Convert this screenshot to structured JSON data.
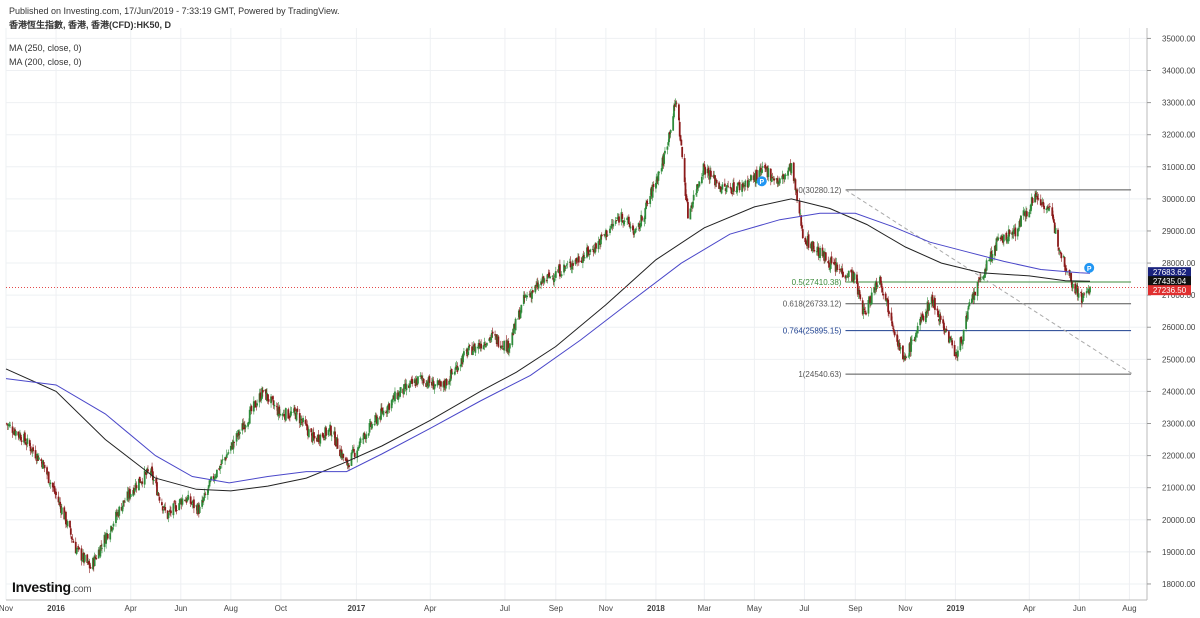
{
  "header": {
    "published": "Published on Investing.com, 17/Jun/2019 - 7:33:19 GMT, Powered by TradingView.",
    "symbol": "香港恆生指數, 香港, 香港(CFD):HK50, D",
    "ma1": "MA (250, close, 0)",
    "ma2": "MA (200, close, 0)"
  },
  "logo": {
    "main": "Investing",
    "suffix": ".com"
  },
  "colors": {
    "up": "#2e8b3a",
    "down": "#8b1a1a",
    "ma250": "#222222",
    "ma200": "#4a47c9",
    "current": "#e03030",
    "fib": "#555555",
    "fib_green": "#3c8c3c",
    "fib_blue": "#1c3f8f"
  },
  "chart_data": {
    "type": "candlestick",
    "title": "香港恆生指數, 香港, 香港(CFD):HK50, D",
    "y_axis": {
      "min": 17500,
      "max": 35200,
      "ticks": [
        18000,
        19000,
        20000,
        21000,
        22000,
        23000,
        24000,
        25000,
        26000,
        27000,
        28000,
        29000,
        30000,
        31000,
        32000,
        33000,
        34000,
        35000
      ],
      "tick_labels": [
        "18000.00",
        "19000.00",
        "20000.00",
        "21000.00",
        "22000.00",
        "23000.00",
        "24000.00",
        "25000.00",
        "26000.00",
        "27000.00",
        "28000.00",
        "29000.00",
        "30000.00",
        "31000.00",
        "32000.00",
        "33000.00",
        "34000.00",
        "35000.00"
      ]
    },
    "x_axis": {
      "start": "2015-11-01",
      "end": "2019-08-20",
      "ticks": [
        {
          "date": "2015-11-01",
          "label": "Nov"
        },
        {
          "date": "2016-01-01",
          "label": "2016"
        },
        {
          "date": "2016-04-01",
          "label": "Apr"
        },
        {
          "date": "2016-06-01",
          "label": "Jun"
        },
        {
          "date": "2016-08-01",
          "label": "Aug"
        },
        {
          "date": "2016-10-01",
          "label": "Oct"
        },
        {
          "date": "2017-01-01",
          "label": "2017"
        },
        {
          "date": "2017-04-01",
          "label": "Apr"
        },
        {
          "date": "2017-07-01",
          "label": "Jul"
        },
        {
          "date": "2017-09-01",
          "label": "Sep"
        },
        {
          "date": "2017-11-01",
          "label": "Nov"
        },
        {
          "date": "2018-01-01",
          "label": "2018"
        },
        {
          "date": "2018-03-01",
          "label": "Mar"
        },
        {
          "date": "2018-05-01",
          "label": "May"
        },
        {
          "date": "2018-07-01",
          "label": "Jul"
        },
        {
          "date": "2018-09-01",
          "label": "Sep"
        },
        {
          "date": "2018-11-01",
          "label": "Nov"
        },
        {
          "date": "2019-01-01",
          "label": "2019"
        },
        {
          "date": "2019-04-01",
          "label": "Apr"
        },
        {
          "date": "2019-06-01",
          "label": "Jun"
        },
        {
          "date": "2019-08-01",
          "label": "Aug"
        }
      ]
    },
    "price_path": [
      [
        "2015-11-01",
        23000
      ],
      [
        "2015-11-20",
        22600
      ],
      [
        "2015-12-15",
        21800
      ],
      [
        "2016-01-10",
        20200
      ],
      [
        "2016-01-25",
        19100
      ],
      [
        "2016-02-12",
        18500
      ],
      [
        "2016-02-25",
        19200
      ],
      [
        "2016-03-20",
        20400
      ],
      [
        "2016-04-10",
        21200
      ],
      [
        "2016-04-25",
        21500
      ],
      [
        "2016-05-15",
        20100
      ],
      [
        "2016-06-05",
        20700
      ],
      [
        "2016-06-24",
        20300
      ],
      [
        "2016-07-10",
        21300
      ],
      [
        "2016-07-31",
        22200
      ],
      [
        "2016-08-20",
        23100
      ],
      [
        "2016-09-09",
        24000
      ],
      [
        "2016-09-30",
        23300
      ],
      [
        "2016-10-20",
        23300
      ],
      [
        "2016-11-10",
        22500
      ],
      [
        "2016-12-01",
        22800
      ],
      [
        "2016-12-20",
        21700
      ],
      [
        "2017-01-15",
        22800
      ],
      [
        "2017-02-20",
        23900
      ],
      [
        "2017-03-20",
        24400
      ],
      [
        "2017-04-15",
        24100
      ],
      [
        "2017-05-15",
        25200
      ],
      [
        "2017-06-15",
        25700
      ],
      [
        "2017-07-05",
        25400
      ],
      [
        "2017-07-25",
        26900
      ],
      [
        "2017-08-20",
        27500
      ],
      [
        "2017-09-15",
        27900
      ],
      [
        "2017-10-15",
        28400
      ],
      [
        "2017-11-20",
        29500
      ],
      [
        "2017-12-08",
        28900
      ],
      [
        "2018-01-10",
        31200
      ],
      [
        "2018-01-26",
        33100
      ],
      [
        "2018-02-09",
        29500
      ],
      [
        "2018-02-28",
        31000
      ],
      [
        "2018-03-23",
        30300
      ],
      [
        "2018-04-15",
        30400
      ],
      [
        "2018-05-15",
        30900
      ],
      [
        "2018-05-31",
        30500
      ],
      [
        "2018-06-15",
        31000
      ],
      [
        "2018-06-30",
        28800
      ],
      [
        "2018-07-20",
        28300
      ],
      [
        "2018-08-10",
        27800
      ],
      [
        "2018-08-30",
        27600
      ],
      [
        "2018-09-12",
        26400
      ],
      [
        "2018-09-30",
        27600
      ],
      [
        "2018-10-15",
        26300
      ],
      [
        "2018-10-30",
        24900
      ],
      [
        "2018-11-15",
        25900
      ],
      [
        "2018-12-03",
        26900
      ],
      [
        "2018-12-20",
        25900
      ],
      [
        "2019-01-03",
        25100
      ],
      [
        "2019-01-20",
        26800
      ],
      [
        "2019-02-20",
        28600
      ],
      [
        "2019-03-15",
        29000
      ],
      [
        "2019-04-08",
        30100
      ],
      [
        "2019-04-25",
        29700
      ],
      [
        "2019-05-10",
        28300
      ],
      [
        "2019-05-25",
        27300
      ],
      [
        "2019-06-05",
        26900
      ],
      [
        "2019-06-14",
        27236
      ]
    ],
    "series": [
      {
        "name": "MA (250, close, 0)",
        "color": "#222222",
        "points": [
          [
            "2015-11-01",
            24700
          ],
          [
            "2016-01-01",
            24000
          ],
          [
            "2016-03-01",
            22500
          ],
          [
            "2016-05-01",
            21300
          ],
          [
            "2016-06-20",
            20950
          ],
          [
            "2016-08-01",
            20900
          ],
          [
            "2016-09-15",
            21050
          ],
          [
            "2016-11-01",
            21300
          ],
          [
            "2016-12-15",
            21750
          ],
          [
            "2017-02-01",
            22300
          ],
          [
            "2017-04-01",
            23100
          ],
          [
            "2017-06-01",
            24000
          ],
          [
            "2017-07-15",
            24600
          ],
          [
            "2017-09-01",
            25400
          ],
          [
            "2017-11-01",
            26700
          ],
          [
            "2018-01-01",
            28100
          ],
          [
            "2018-03-01",
            29100
          ],
          [
            "2018-05-01",
            29750
          ],
          [
            "2018-06-15",
            30000
          ],
          [
            "2018-08-01",
            29700
          ],
          [
            "2018-09-15",
            29200
          ],
          [
            "2018-11-01",
            28500
          ],
          [
            "2018-12-15",
            28000
          ],
          [
            "2019-02-01",
            27700
          ],
          [
            "2019-04-01",
            27600
          ],
          [
            "2019-05-15",
            27450
          ],
          [
            "2019-06-14",
            27435
          ]
        ]
      },
      {
        "name": "MA (200, close, 0)",
        "color": "#4a47c9",
        "points": [
          [
            "2015-11-01",
            24400
          ],
          [
            "2016-01-01",
            24200
          ],
          [
            "2016-03-01",
            23300
          ],
          [
            "2016-05-01",
            22000
          ],
          [
            "2016-06-15",
            21350
          ],
          [
            "2016-07-30",
            21150
          ],
          [
            "2016-09-15",
            21350
          ],
          [
            "2016-11-01",
            21500
          ],
          [
            "2016-12-20",
            21500
          ],
          [
            "2017-02-01",
            22050
          ],
          [
            "2017-04-01",
            22850
          ],
          [
            "2017-06-01",
            23700
          ],
          [
            "2017-08-01",
            24500
          ],
          [
            "2017-10-01",
            25600
          ],
          [
            "2017-12-01",
            26800
          ],
          [
            "2018-02-01",
            28000
          ],
          [
            "2018-04-01",
            28900
          ],
          [
            "2018-06-01",
            29350
          ],
          [
            "2018-07-20",
            29550
          ],
          [
            "2018-09-01",
            29550
          ],
          [
            "2018-10-15",
            29150
          ],
          [
            "2018-12-01",
            28650
          ],
          [
            "2019-01-15",
            28350
          ],
          [
            "2019-03-01",
            28050
          ],
          [
            "2019-04-15",
            27800
          ],
          [
            "2019-06-01",
            27700
          ],
          [
            "2019-06-14",
            27684
          ]
        ]
      }
    ],
    "fibonacci": [
      {
        "label": "0(30280.12)",
        "level": "0",
        "value": 30280.12,
        "color": "#555555"
      },
      {
        "label": "0.5(27410.38)",
        "level": "0.5",
        "value": 27410.38,
        "color": "#3c8c3c"
      },
      {
        "label": "0.618(26733.12)",
        "level": "0.618",
        "value": 26733.12,
        "color": "#555555"
      },
      {
        "label": "0.764(25895.15)",
        "level": "0.764",
        "value": 25895.15,
        "color": "#1c3f8f"
      },
      {
        "label": "1(24540.63)",
        "level": "1",
        "value": 24540.63,
        "color": "#555555"
      }
    ],
    "fib_range": {
      "start": "2018-08-20",
      "end": "2019-08-03"
    },
    "trend_line": {
      "from": [
        "2018-08-20",
        30280
      ],
      "to": [
        "2019-08-05",
        24540
      ]
    },
    "current_line": 27236.5,
    "price_labels": [
      {
        "text": "27683.62",
        "value": 27683.62,
        "color": "#1a237e"
      },
      {
        "text": "27435.04",
        "value": 27435.04,
        "color": "#111111"
      },
      {
        "text": "27236.50",
        "value": 27236.5,
        "color": "#e03030"
      }
    ],
    "markers": [
      {
        "date": "2018-05-10",
        "value": 30550
      },
      {
        "date": "2019-06-13",
        "value": 27850
      }
    ]
  }
}
